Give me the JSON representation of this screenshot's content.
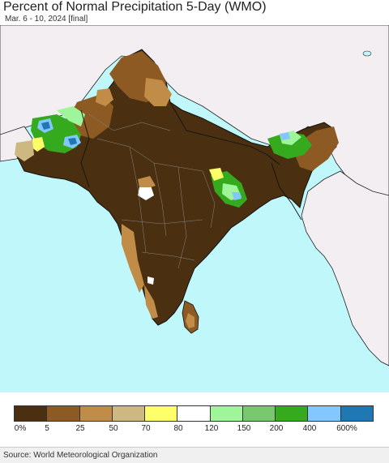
{
  "header": {
    "title": "Percent of Normal Precipitation 5-Day (WMO)",
    "subtitle": "Mar. 6 - 10, 2024 [final]"
  },
  "legend": {
    "colors": [
      "#4a3010",
      "#8c5a22",
      "#c08c48",
      "#cdb882",
      "#ffff6a",
      "#ffffff",
      "#9ef59a",
      "#78c86e",
      "#36aa1e",
      "#82c8ff",
      "#1f78b4"
    ],
    "labels": [
      "0%",
      "5",
      "25",
      "50",
      "70",
      "80",
      "120",
      "150",
      "200",
      "400",
      "600%"
    ]
  },
  "colors": {
    "ocean": "#bff7fb",
    "land_outside": "#f2eef1",
    "dry_core": "#4a3010",
    "borders": "#111111"
  },
  "footer": {
    "source": "Source: World Meteorological Organization"
  }
}
